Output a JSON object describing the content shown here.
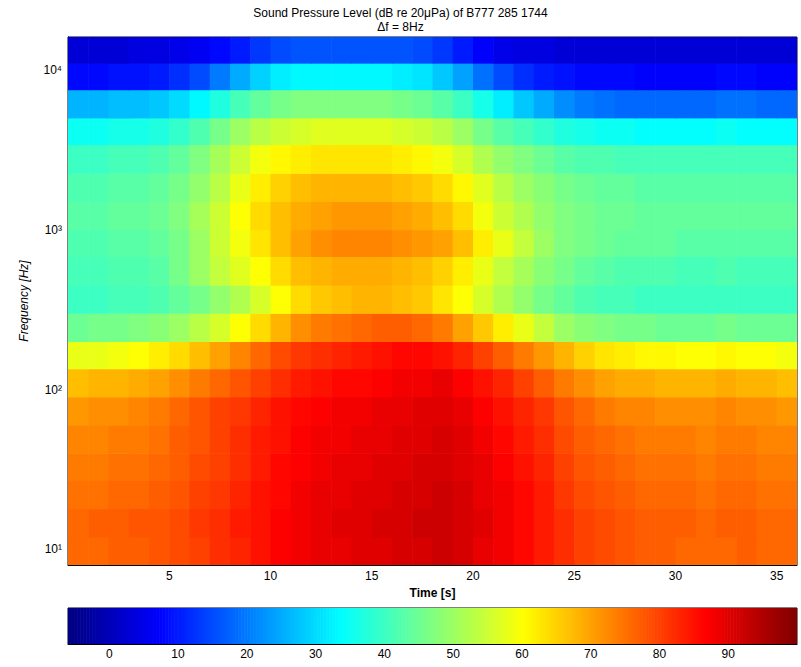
{
  "chart_data": {
    "type": "heatmap",
    "title": "Sound Pressure Level (dB re 20μPa) of B777 285 1744",
    "subtitle": "Δf = 8Hz",
    "x_label": "Time [s]",
    "y_label": "Frequency [Hz]",
    "xlim": [
      0,
      36
    ],
    "xticks": [
      5,
      10,
      15,
      20,
      25,
      30,
      35
    ],
    "ylim": [
      8,
      16000
    ],
    "yticks": [
      {
        "value": 10,
        "label": "10¹"
      },
      {
        "value": 100,
        "label": "10²"
      },
      {
        "value": 1000,
        "label": "10³"
      },
      {
        "value": 10000,
        "label": "10⁴"
      }
    ],
    "log": "y",
    "grid": false,
    "x_edges": [
      0,
      1,
      2,
      3,
      4,
      5,
      6,
      7,
      8,
      9,
      10,
      11,
      12,
      13,
      14,
      15,
      16,
      17,
      18,
      19,
      20,
      21,
      22,
      23,
      24,
      25,
      26,
      27,
      28,
      29,
      30,
      31,
      32,
      33,
      34,
      35,
      36
    ],
    "y_edges": [
      8,
      12,
      18,
      27,
      40,
      60,
      90,
      135,
      200,
      300,
      450,
      680,
      1000,
      1500,
      2250,
      3400,
      5000,
      7500,
      11000,
      16000
    ],
    "values": [
      [
        76,
        76,
        77,
        77,
        78,
        79,
        80,
        82,
        83,
        85,
        87,
        88,
        89,
        89,
        90,
        90,
        91,
        91,
        92,
        91,
        89,
        88,
        86,
        84,
        82,
        80,
        79,
        78,
        77,
        77,
        76,
        76,
        76,
        77,
        76,
        76
      ],
      [
        76,
        77,
        77,
        78,
        78,
        79,
        81,
        82,
        84,
        85,
        87,
        88,
        89,
        90,
        90,
        91,
        91,
        92,
        92,
        91,
        90,
        88,
        86,
        84,
        82,
        80,
        79,
        78,
        77,
        77,
        77,
        76,
        77,
        77,
        76,
        76
      ],
      [
        75,
        75,
        76,
        76,
        77,
        78,
        80,
        81,
        83,
        85,
        86,
        88,
        89,
        89,
        90,
        90,
        91,
        91,
        92,
        91,
        89,
        88,
        86,
        84,
        81,
        79,
        78,
        77,
        76,
        76,
        76,
        75,
        76,
        76,
        75,
        75
      ],
      [
        74,
        74,
        75,
        75,
        76,
        77,
        79,
        80,
        82,
        84,
        86,
        87,
        88,
        89,
        89,
        90,
        90,
        91,
        91,
        90,
        89,
        87,
        85,
        83,
        80,
        78,
        77,
        76,
        75,
        75,
        75,
        74,
        75,
        75,
        74,
        74
      ],
      [
        73,
        73,
        74,
        74,
        75,
        77,
        78,
        80,
        82,
        84,
        85,
        87,
        88,
        88,
        89,
        89,
        90,
        90,
        91,
        90,
        88,
        86,
        84,
        82,
        79,
        77,
        76,
        75,
        74,
        74,
        74,
        73,
        74,
        74,
        73,
        73
      ],
      [
        71,
        72,
        72,
        73,
        74,
        76,
        78,
        80,
        81,
        83,
        85,
        86,
        87,
        88,
        88,
        89,
        89,
        90,
        90,
        89,
        87,
        85,
        83,
        81,
        78,
        76,
        74,
        73,
        73,
        72,
        72,
        72,
        73,
        72,
        72,
        71
      ],
      [
        67,
        68,
        68,
        69,
        70,
        72,
        74,
        76,
        78,
        80,
        82,
        84,
        85,
        86,
        86,
        87,
        88,
        88,
        89,
        87,
        85,
        83,
        80,
        77,
        74,
        72,
        70,
        69,
        69,
        68,
        68,
        68,
        69,
        68,
        68,
        67
      ],
      [
        58,
        58,
        59,
        60,
        62,
        64,
        67,
        70,
        73,
        76,
        79,
        81,
        82,
        83,
        84,
        85,
        86,
        86,
        85,
        83,
        80,
        77,
        74,
        71,
        68,
        65,
        63,
        62,
        61,
        61,
        60,
        60,
        61,
        60,
        60,
        59
      ],
      [
        45,
        46,
        46,
        47,
        48,
        50,
        53,
        56,
        60,
        64,
        68,
        72,
        74,
        75,
        76,
        77,
        77,
        76,
        74,
        70,
        66,
        62,
        58,
        54,
        50,
        48,
        47,
        46,
        46,
        45,
        45,
        45,
        46,
        45,
        45,
        45
      ],
      [
        40,
        40,
        41,
        41,
        42,
        44,
        46,
        49,
        52,
        56,
        60,
        64,
        66,
        67,
        68,
        68,
        67,
        66,
        63,
        60,
        56,
        52,
        49,
        46,
        44,
        42,
        41,
        41,
        40,
        40,
        40,
        40,
        40,
        40,
        40,
        40
      ],
      [
        41,
        41,
        42,
        42,
        43,
        46,
        50,
        54,
        57,
        60,
        64,
        67,
        68,
        69,
        69,
        69,
        68,
        67,
        65,
        62,
        58,
        54,
        51,
        48,
        46,
        44,
        43,
        42,
        42,
        42,
        41,
        41,
        42,
        41,
        41,
        41
      ],
      [
        42,
        42,
        43,
        43,
        44,
        46,
        50,
        55,
        59,
        63,
        67,
        70,
        72,
        73,
        73,
        73,
        72,
        71,
        70,
        67,
        62,
        58,
        54,
        50,
        47,
        46,
        45,
        44,
        44,
        44,
        43,
        43,
        43,
        43,
        43,
        43
      ],
      [
        43,
        43,
        44,
        44,
        45,
        47,
        51,
        55,
        60,
        64,
        67,
        69,
        70,
        71,
        71,
        71,
        70,
        69,
        67,
        64,
        59,
        55,
        52,
        49,
        47,
        46,
        45,
        45,
        44,
        44,
        44,
        44,
        44,
        44,
        44,
        44
      ],
      [
        42,
        42,
        43,
        43,
        44,
        46,
        49,
        53,
        58,
        62,
        65,
        67,
        68,
        68,
        68,
        68,
        67,
        66,
        64,
        61,
        57,
        53,
        50,
        48,
        46,
        45,
        44,
        44,
        43,
        43,
        43,
        43,
        43,
        43,
        43,
        43
      ],
      [
        40,
        40,
        41,
        41,
        42,
        44,
        47,
        51,
        55,
        59,
        61,
        62,
        63,
        63,
        63,
        63,
        62,
        61,
        59,
        56,
        52,
        49,
        47,
        45,
        43,
        42,
        42,
        41,
        41,
        41,
        41,
        41,
        41,
        41,
        41,
        41
      ],
      [
        35,
        35,
        36,
        36,
        37,
        39,
        42,
        46,
        50,
        53,
        55,
        56,
        57,
        57,
        57,
        57,
        56,
        55,
        53,
        50,
        46,
        43,
        41,
        39,
        37,
        36,
        35,
        35,
        34,
        34,
        34,
        34,
        35,
        34,
        34,
        34
      ],
      [
        26,
        26,
        27,
        27,
        28,
        30,
        33,
        37,
        41,
        44,
        46,
        47,
        47,
        47,
        47,
        47,
        46,
        45,
        43,
        40,
        36,
        32,
        28,
        25,
        22,
        20,
        19,
        18,
        18,
        18,
        18,
        18,
        19,
        19,
        18,
        18
      ],
      [
        8,
        8,
        9,
        9,
        10,
        12,
        15,
        20,
        25,
        29,
        32,
        33,
        33,
        33,
        33,
        33,
        32,
        31,
        28,
        24,
        19,
        15,
        12,
        10,
        9,
        8,
        8,
        8,
        7,
        7,
        7,
        7,
        8,
        8,
        7,
        7
      ],
      [
        3,
        3,
        3,
        4,
        4,
        5,
        6,
        8,
        10,
        13,
        15,
        16,
        16,
        16,
        16,
        16,
        16,
        15,
        13,
        10,
        7,
        5,
        4,
        4,
        3,
        3,
        3,
        3,
        3,
        3,
        3,
        3,
        3,
        3,
        3,
        3
      ]
    ],
    "colorbar": {
      "range": [
        -6,
        100
      ],
      "ticks": [
        0,
        10,
        20,
        30,
        40,
        50,
        60,
        70,
        80,
        90
      ]
    }
  }
}
